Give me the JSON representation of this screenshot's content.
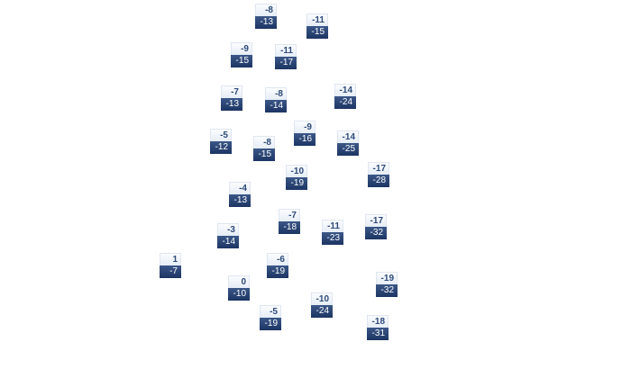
{
  "colors": {
    "high_bg": "#eef3fa",
    "high_text": "#2d4a7a",
    "low_bg": "#2a4575",
    "low_text": "#ffffff"
  },
  "stations": [
    {
      "high": "-8",
      "low": "-13"
    },
    {
      "high": "-11",
      "low": "-15"
    },
    {
      "high": "-9",
      "low": "-15"
    },
    {
      "high": "-11",
      "low": "-17"
    },
    {
      "high": "-7",
      "low": "-13"
    },
    {
      "high": "-8",
      "low": "-14"
    },
    {
      "high": "-14",
      "low": "-24"
    },
    {
      "high": "-5",
      "low": "-12"
    },
    {
      "high": "-9",
      "low": "-16"
    },
    {
      "high": "-8",
      "low": "-15"
    },
    {
      "high": "-14",
      "low": "-25"
    },
    {
      "high": "-10",
      "low": "-19"
    },
    {
      "high": "-17",
      "low": "-28"
    },
    {
      "high": "-4",
      "low": "-13"
    },
    {
      "high": "-7",
      "low": "-18"
    },
    {
      "high": "-3",
      "low": "-14"
    },
    {
      "high": "-11",
      "low": "-23"
    },
    {
      "high": "-17",
      "low": "-32"
    },
    {
      "high": "1",
      "low": "-7"
    },
    {
      "high": "-6",
      "low": "-19"
    },
    {
      "high": "0",
      "low": "-10"
    },
    {
      "high": "-19",
      "low": "-32"
    },
    {
      "high": "-10",
      "low": "-24"
    },
    {
      "high": "-5",
      "low": "-19"
    },
    {
      "high": "-18",
      "low": "-31"
    }
  ]
}
